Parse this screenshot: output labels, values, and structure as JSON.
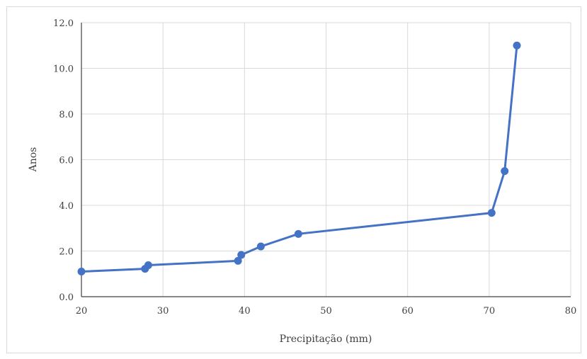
{
  "chart_data": {
    "type": "line",
    "xlabel": "Precipitação (mm)",
    "ylabel": "Anos",
    "xlim": [
      20,
      80
    ],
    "ylim": [
      0,
      12
    ],
    "xticks": [
      20,
      30,
      40,
      50,
      60,
      70,
      80
    ],
    "yticks": [
      "0.0",
      "2.0",
      "4.0",
      "6.0",
      "8.0",
      "10.0",
      "12.0"
    ],
    "grid": true,
    "series": [
      {
        "color": "#4472c4",
        "x": [
          20.0,
          27.8,
          28.2,
          39.2,
          39.6,
          42.0,
          46.6,
          70.3,
          71.9,
          73.4
        ],
        "y": [
          1.1,
          1.22,
          1.38,
          1.57,
          1.83,
          2.2,
          2.75,
          3.67,
          5.5,
          11.0
        ]
      }
    ]
  }
}
